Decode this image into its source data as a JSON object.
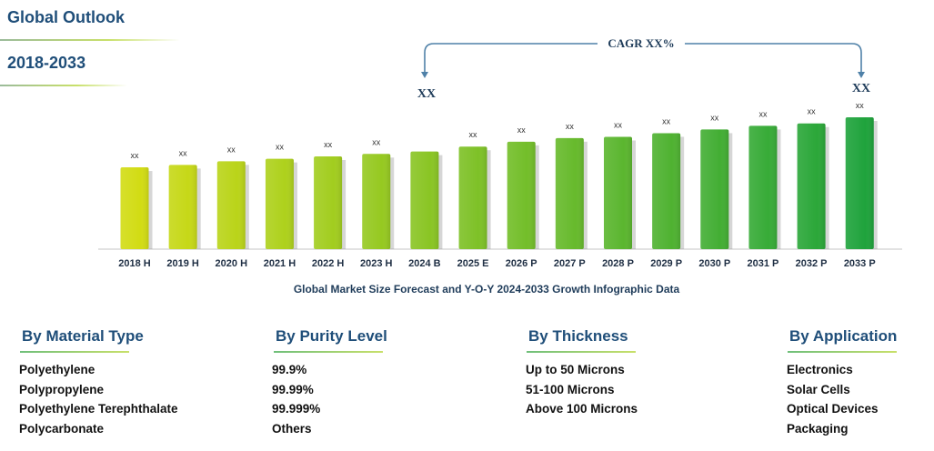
{
  "header": {
    "title": "Global Outlook",
    "period": "2018-2033"
  },
  "colors": {
    "title": "#1f4e79",
    "bar_start": "#d2dc14",
    "bar_end": "#1fa33c",
    "cagr_bracket": "#4f81a8"
  },
  "cagr": {
    "label": "CAGR XX%",
    "start_value": "XX",
    "end_value": "XX"
  },
  "chart_data": {
    "type": "bar",
    "title": "Global Market Size Forecast and Y-O-Y 2024-2033 Growth Infographic Data",
    "categories": [
      "2018 H",
      "2019 H",
      "2020 H",
      "2021 H",
      "2022 H",
      "2023 H",
      "2024 B",
      "2025 E",
      "2026 P",
      "2027 P",
      "2028 P",
      "2029 P",
      "2030 P",
      "2031 P",
      "2032 P",
      "2033 P"
    ],
    "values": [
      0.67,
      0.69,
      0.72,
      0.74,
      0.76,
      0.78,
      0.8,
      0.84,
      0.88,
      0.91,
      0.92,
      0.95,
      0.98,
      1.01,
      1.03,
      1.08
    ],
    "data_labels": [
      "xx",
      "xx",
      "xx",
      "xx",
      "xx",
      "xx",
      "",
      "xx",
      "xx",
      "xx",
      "xx",
      "xx",
      "xx",
      "xx",
      "xx",
      "xx"
    ],
    "value_scale": "relative (unlabeled axis)",
    "ylim": [
      0,
      1.08
    ],
    "grid": false,
    "legend": "none"
  },
  "segments": [
    {
      "title": "By Material Type",
      "items": [
        "Polyethylene",
        "Polypropylene",
        "Polyethylene Terephthalate",
        "Polycarbonate"
      ]
    },
    {
      "title": "By Purity Level",
      "items": [
        "99.9%",
        "99.99%",
        "99.999%",
        "Others"
      ]
    },
    {
      "title": "By Thickness",
      "items": [
        "Up to 50 Microns",
        "51-100 Microns",
        "Above 100 Microns"
      ]
    },
    {
      "title": "By Application",
      "items": [
        "Electronics",
        "Solar Cells",
        "Optical Devices",
        "Packaging"
      ]
    }
  ]
}
